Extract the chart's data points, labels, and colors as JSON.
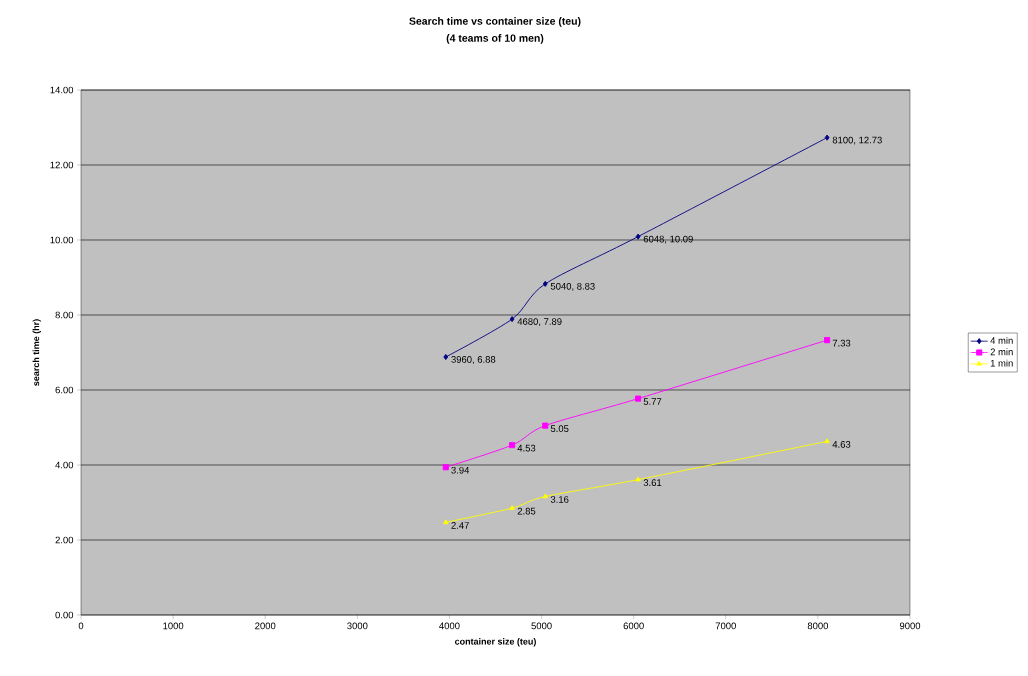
{
  "chart_data": {
    "type": "line",
    "title": "Search time vs container size (teu)",
    "subtitle": "(4 teams of 10 men)",
    "xlabel": "container size (teu)",
    "ylabel": "search time (hr)",
    "x": [
      3960,
      4680,
      5040,
      6048,
      8100
    ],
    "series": [
      {
        "name": "4 min",
        "color": "#000080",
        "marker": "diamond",
        "values": [
          6.88,
          7.89,
          8.83,
          10.09,
          12.73
        ],
        "value_labels": [
          "3960, 6.88",
          "4680, 7.89",
          "5040, 8.83",
          "6048, 10.09",
          "8100, 12.73"
        ]
      },
      {
        "name": "2 min",
        "color": "#ff00ff",
        "marker": "square",
        "values": [
          3.94,
          4.53,
          5.05,
          5.77,
          7.33
        ],
        "value_labels": [
          "3.94",
          "4.53",
          "5.05",
          "5.77",
          "7.33"
        ]
      },
      {
        "name": "1 min",
        "color": "#ffff00",
        "marker": "triangle",
        "values": [
          2.47,
          2.85,
          3.16,
          3.61,
          4.63
        ],
        "value_labels": [
          "2.47",
          "2.85",
          "3.16",
          "3.61",
          "4.63"
        ]
      }
    ],
    "xlim": [
      0,
      9000
    ],
    "xticks": [
      0,
      1000,
      2000,
      3000,
      4000,
      5000,
      6000,
      7000,
      8000,
      9000
    ],
    "ylim": [
      0,
      14
    ],
    "yticks": [
      {
        "value": 0,
        "label": "0.00"
      },
      {
        "value": 2,
        "label": "2.00"
      },
      {
        "value": 4,
        "label": "4.00"
      },
      {
        "value": 6,
        "label": "6.00"
      },
      {
        "value": 8,
        "label": "8.00"
      },
      {
        "value": 10,
        "label": "10.00"
      },
      {
        "value": 12,
        "label": "12.00"
      },
      {
        "value": 14,
        "label": "14.00"
      }
    ],
    "grid": "y",
    "legend": "right",
    "line_style": "solid"
  }
}
